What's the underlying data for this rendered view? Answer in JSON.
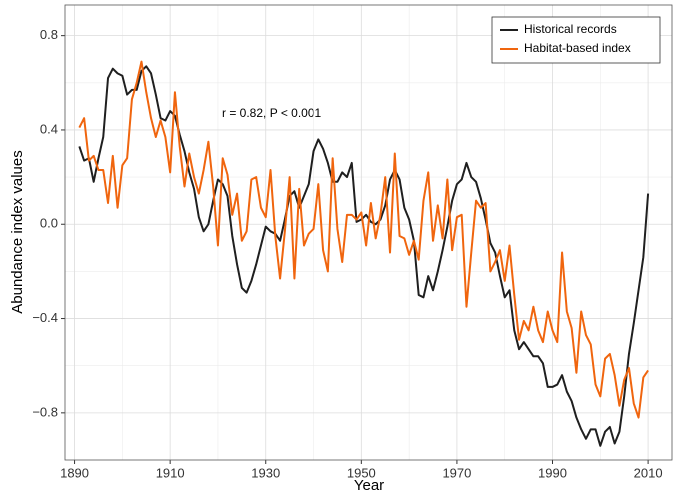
{
  "chart_data": {
    "type": "line",
    "xlabel": "Year",
    "ylabel": "Abundance index values",
    "annotation": "r = 0.82, P < 0.001",
    "x": [
      1891,
      1892,
      1893,
      1894,
      1895,
      1896,
      1897,
      1898,
      1899,
      1900,
      1901,
      1902,
      1903,
      1904,
      1905,
      1906,
      1907,
      1908,
      1909,
      1910,
      1911,
      1912,
      1913,
      1914,
      1915,
      1916,
      1917,
      1918,
      1919,
      1920,
      1921,
      1922,
      1923,
      1924,
      1925,
      1926,
      1927,
      1928,
      1929,
      1930,
      1931,
      1932,
      1933,
      1934,
      1935,
      1936,
      1937,
      1938,
      1939,
      1940,
      1941,
      1942,
      1943,
      1944,
      1945,
      1946,
      1947,
      1948,
      1949,
      1950,
      1951,
      1952,
      1953,
      1954,
      1955,
      1956,
      1957,
      1958,
      1959,
      1960,
      1961,
      1962,
      1963,
      1964,
      1965,
      1966,
      1967,
      1968,
      1969,
      1970,
      1971,
      1972,
      1973,
      1974,
      1975,
      1976,
      1977,
      1978,
      1979,
      1980,
      1981,
      1982,
      1983,
      1984,
      1985,
      1986,
      1987,
      1988,
      1989,
      1990,
      1991,
      1992,
      1993,
      1994,
      1995,
      1996,
      1997,
      1998,
      1999,
      2000,
      2001,
      2002,
      2003,
      2004,
      2005,
      2006,
      2007,
      2008,
      2009,
      2010
    ],
    "series": [
      {
        "name": "Historical records",
        "color": "#1f1f1f",
        "values": [
          0.33,
          0.27,
          0.28,
          0.18,
          0.28,
          0.37,
          0.62,
          0.66,
          0.64,
          0.63,
          0.55,
          0.57,
          0.57,
          0.65,
          0.67,
          0.64,
          0.55,
          0.45,
          0.44,
          0.48,
          0.46,
          0.38,
          0.31,
          0.22,
          0.15,
          0.03,
          -0.03,
          0.0,
          0.1,
          0.19,
          0.17,
          0.12,
          -0.05,
          -0.17,
          -0.27,
          -0.29,
          -0.24,
          -0.17,
          -0.09,
          -0.01,
          -0.03,
          -0.04,
          -0.07,
          0.02,
          0.12,
          0.14,
          0.07,
          0.12,
          0.17,
          0.31,
          0.36,
          0.32,
          0.26,
          0.18,
          0.18,
          0.22,
          0.2,
          0.26,
          0.01,
          0.02,
          0.04,
          0.01,
          0.0,
          0.02,
          0.08,
          0.19,
          0.23,
          0.19,
          0.07,
          0.02,
          -0.07,
          -0.3,
          -0.31,
          -0.22,
          -0.28,
          -0.2,
          -0.11,
          -0.01,
          0.1,
          0.17,
          0.19,
          0.26,
          0.2,
          0.18,
          0.11,
          0.02,
          -0.08,
          -0.12,
          -0.22,
          -0.31,
          -0.28,
          -0.45,
          -0.53,
          -0.5,
          -0.53,
          -0.56,
          -0.56,
          -0.59,
          -0.69,
          -0.69,
          -0.68,
          -0.64,
          -0.71,
          -0.75,
          -0.82,
          -0.87,
          -0.91,
          -0.87,
          -0.87,
          -0.94,
          -0.88,
          -0.86,
          -0.93,
          -0.88,
          -0.73,
          -0.55,
          -0.42,
          -0.28,
          -0.14,
          0.13
        ]
      },
      {
        "name": "Habitat-based index",
        "color": "#f0650e",
        "values": [
          0.41,
          0.45,
          0.27,
          0.29,
          0.23,
          0.23,
          0.09,
          0.29,
          0.07,
          0.25,
          0.28,
          0.53,
          0.6,
          0.69,
          0.56,
          0.45,
          0.37,
          0.44,
          0.37,
          0.22,
          0.56,
          0.33,
          0.16,
          0.3,
          0.2,
          0.13,
          0.23,
          0.35,
          0.16,
          -0.09,
          0.28,
          0.21,
          0.04,
          0.13,
          -0.07,
          -0.03,
          0.19,
          0.2,
          0.07,
          0.03,
          0.23,
          -0.05,
          -0.23,
          -0.03,
          0.2,
          -0.23,
          0.15,
          -0.09,
          -0.04,
          -0.02,
          0.17,
          -0.11,
          -0.2,
          0.28,
          -0.02,
          -0.16,
          0.04,
          0.04,
          0.02,
          0.05,
          -0.09,
          0.09,
          -0.06,
          0.04,
          0.2,
          -0.12,
          0.3,
          -0.05,
          -0.06,
          -0.13,
          -0.07,
          -0.15,
          0.1,
          0.22,
          -0.07,
          0.08,
          -0.06,
          0.19,
          -0.11,
          0.03,
          0.04,
          -0.35,
          -0.12,
          0.1,
          0.07,
          0.09,
          -0.2,
          -0.16,
          -0.11,
          -0.24,
          -0.09,
          -0.3,
          -0.49,
          -0.41,
          -0.45,
          -0.35,
          -0.45,
          -0.5,
          -0.37,
          -0.45,
          -0.5,
          -0.12,
          -0.37,
          -0.44,
          -0.63,
          -0.37,
          -0.47,
          -0.51,
          -0.68,
          -0.73,
          -0.57,
          -0.55,
          -0.64,
          -0.77,
          -0.66,
          -0.61,
          -0.76,
          -0.82,
          -0.65,
          -0.62
        ]
      }
    ],
    "xlim": [
      1888,
      2015
    ],
    "ylim": [
      -1.0,
      0.93
    ],
    "xticks": [
      1890,
      1910,
      1930,
      1950,
      1970,
      1990,
      2010
    ],
    "yticks": [
      {
        "value": -0.8,
        "label": "−0.8"
      },
      {
        "value": -0.4,
        "label": "−0.4"
      },
      {
        "value": 0,
        "label": "0.0"
      },
      {
        "value": 0.4,
        "label": "0.4"
      },
      {
        "value": 0.8,
        "label": "0.8"
      }
    ],
    "x_minor_grid": [
      1900,
      1920,
      1940,
      1960,
      1980,
      2000
    ],
    "y_minor_grid": [
      -0.6,
      -0.2,
      0.2,
      0.6
    ],
    "grid": true,
    "legend": "top-right"
  }
}
